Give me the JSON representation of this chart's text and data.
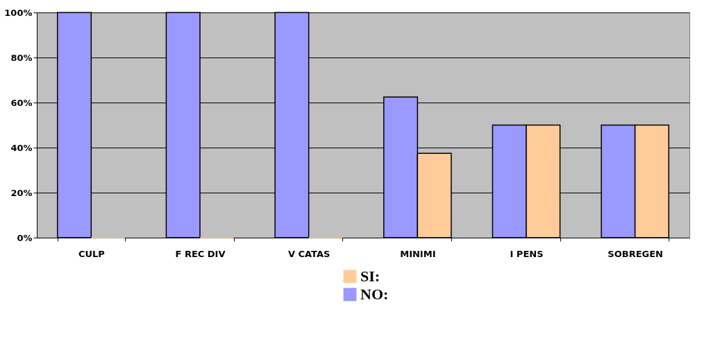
{
  "chart_data": {
    "type": "bar",
    "categories": [
      "CULP",
      "F REC DIV",
      "V CATAS",
      "MINIMI",
      "I PENS",
      "SOBREGEN"
    ],
    "series": [
      {
        "name": "NO:",
        "color": "#9999ff",
        "values": [
          100,
          100,
          100,
          62.5,
          50,
          50
        ]
      },
      {
        "name": "SI:",
        "color": "#ffcc99",
        "values": [
          0,
          0,
          0,
          37.5,
          50,
          50
        ]
      }
    ],
    "ylim": [
      0,
      100
    ],
    "yticks": [
      {
        "value": 0,
        "label": "0%"
      },
      {
        "value": 20,
        "label": "20%"
      },
      {
        "value": 40,
        "label": "40%"
      },
      {
        "value": 60,
        "label": "60%"
      },
      {
        "value": 80,
        "label": "80%"
      },
      {
        "value": 100,
        "label": "100%"
      }
    ],
    "grid": "y",
    "legend": "bottom"
  }
}
